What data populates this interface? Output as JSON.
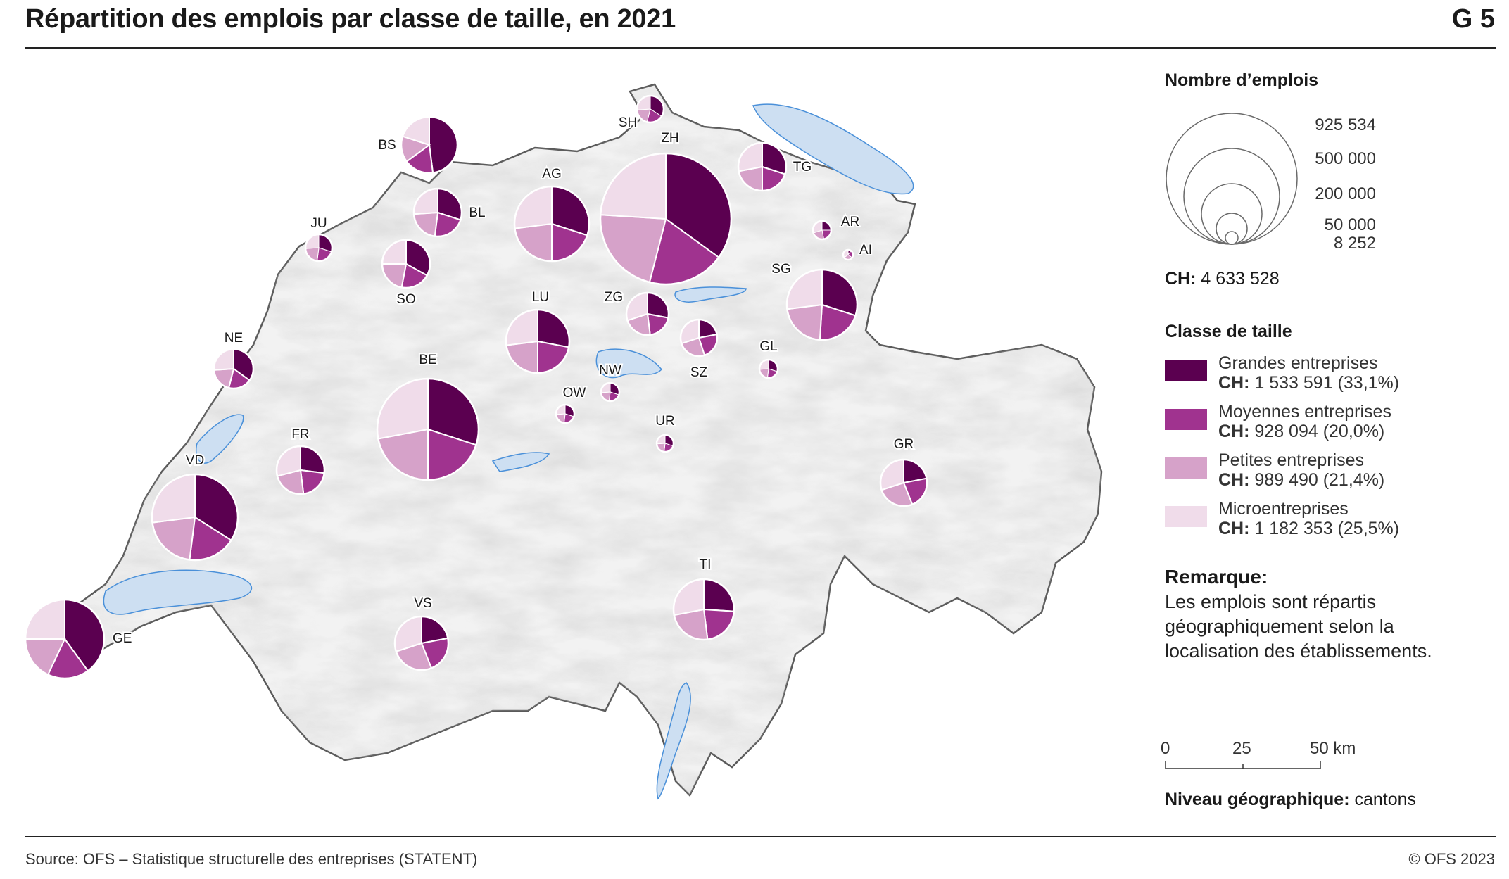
{
  "header": {
    "title": "Répartition des emplois par classe de taille, en 2021",
    "graphic_id": "G 5"
  },
  "footer": {
    "source": "Source: OFS – Statistique structurelle des entreprises (STATENT)",
    "copyright": "© OFS 2023"
  },
  "legend": {
    "size_title": "Nombre d’emplois",
    "size_values": [
      "925 534",
      "500 000",
      "200 000",
      "50 000",
      "8 252"
    ],
    "ch_label": "CH:",
    "ch_total": "4 633 528",
    "class_title": "Classe de taille",
    "classes": [
      {
        "name": "Grandes entreprises",
        "ch": "CH:",
        "value": "1 533 591 (33,1%)",
        "color": "#5b0050"
      },
      {
        "name": "Moyennes entreprises",
        "ch": "CH:",
        "value": "928 094 (20,0%)",
        "color": "#a0338f"
      },
      {
        "name": "Petites entreprises",
        "ch": "CH:",
        "value": "989 490 (21,4%)",
        "color": "#d6a2c9"
      },
      {
        "name": "Microentreprises",
        "ch": "CH:",
        "value": "1 182 353 (25,5%)",
        "color": "#f0dcea"
      }
    ],
    "remark_title": "Remarque:",
    "remark_text": "Les emplois sont répartis géographiquement selon la localisation des établissements.",
    "scale": [
      "0",
      "25",
      "50 km"
    ],
    "geo_label": "Niveau géographique:",
    "geo_value": "cantons"
  },
  "chart_data": {
    "type": "pie-map",
    "cantons": [
      {
        "code": "ZH",
        "s": [
          0.35,
          0.19,
          0.22,
          0.24
        ]
      },
      {
        "code": "BE",
        "s": [
          0.3,
          0.2,
          0.22,
          0.28
        ]
      },
      {
        "code": "VD",
        "s": [
          0.34,
          0.18,
          0.21,
          0.27
        ]
      },
      {
        "code": "GE",
        "s": [
          0.4,
          0.17,
          0.18,
          0.25
        ]
      },
      {
        "code": "AG",
        "s": [
          0.3,
          0.2,
          0.23,
          0.27
        ]
      },
      {
        "code": "SG",
        "s": [
          0.3,
          0.21,
          0.22,
          0.27
        ]
      },
      {
        "code": "LU",
        "s": [
          0.28,
          0.22,
          0.23,
          0.27
        ]
      },
      {
        "code": "TI",
        "s": [
          0.26,
          0.22,
          0.24,
          0.28
        ]
      },
      {
        "code": "BS",
        "s": [
          0.48,
          0.17,
          0.15,
          0.2
        ]
      },
      {
        "code": "VS",
        "s": [
          0.22,
          0.22,
          0.26,
          0.3
        ]
      },
      {
        "code": "FR",
        "s": [
          0.27,
          0.21,
          0.23,
          0.29
        ]
      },
      {
        "code": "SO",
        "s": [
          0.33,
          0.2,
          0.22,
          0.25
        ]
      },
      {
        "code": "TG",
        "s": [
          0.3,
          0.2,
          0.22,
          0.28
        ]
      },
      {
        "code": "BL",
        "s": [
          0.3,
          0.22,
          0.22,
          0.26
        ]
      },
      {
        "code": "GR",
        "s": [
          0.22,
          0.22,
          0.26,
          0.3
        ]
      },
      {
        "code": "ZG",
        "s": [
          0.28,
          0.2,
          0.22,
          0.3
        ]
      },
      {
        "code": "NE",
        "s": [
          0.35,
          0.19,
          0.2,
          0.26
        ]
      },
      {
        "code": "SZ",
        "s": [
          0.22,
          0.23,
          0.25,
          0.3
        ]
      },
      {
        "code": "JU",
        "s": [
          0.3,
          0.22,
          0.22,
          0.26
        ]
      },
      {
        "code": "SH",
        "s": [
          0.34,
          0.2,
          0.2,
          0.26
        ]
      },
      {
        "code": "AR",
        "s": [
          0.25,
          0.22,
          0.23,
          0.3
        ]
      },
      {
        "code": "GL",
        "s": [
          0.3,
          0.22,
          0.22,
          0.26
        ]
      },
      {
        "code": "NW",
        "s": [
          0.3,
          0.22,
          0.22,
          0.26
        ]
      },
      {
        "code": "OW",
        "s": [
          0.3,
          0.22,
          0.22,
          0.26
        ]
      },
      {
        "code": "UR",
        "s": [
          0.3,
          0.22,
          0.22,
          0.26
        ]
      },
      {
        "code": "AI",
        "s": [
          0.1,
          0.25,
          0.3,
          0.35
        ]
      }
    ]
  }
}
